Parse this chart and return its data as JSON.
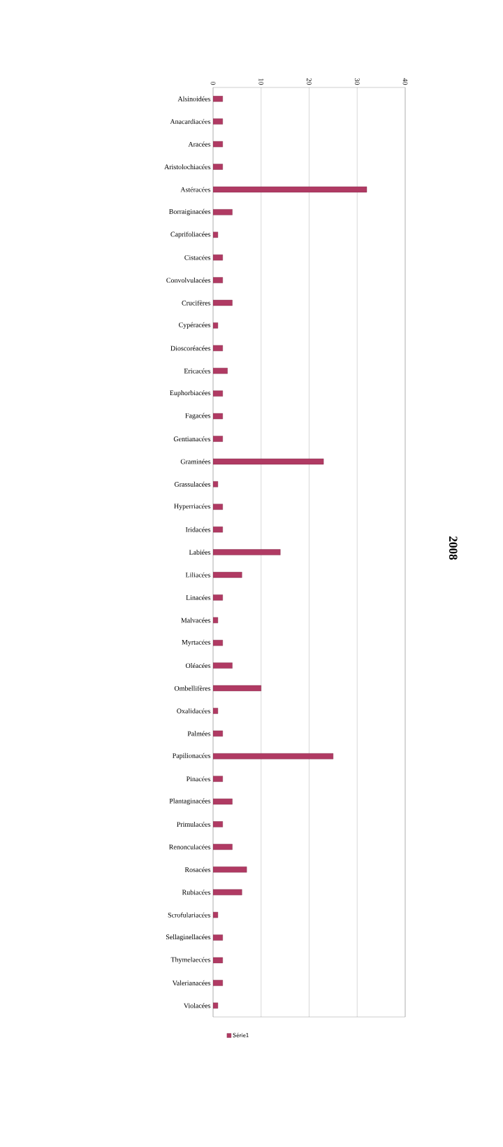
{
  "chart_data": {
    "type": "bar",
    "orientation": "horizontal",
    "title": "2008",
    "categories": [
      "Alsinoidées",
      "Anacardiacées",
      "Aracées",
      "Aristolochiacées",
      "Astéracées",
      "Borraiginacées",
      "Caprifoliacées",
      "Cistacées",
      "Convolvulacées",
      "Crucifères",
      "Cypéracées",
      "Dioscoréacées",
      "Ericacées",
      "Euphorbiacées",
      "Fagacées",
      "Gentianacées",
      "Graminées",
      "Grassulacées",
      "Hyperriacées",
      "Iridacées",
      "Labiées",
      "Liliacées",
      "Linacées",
      "Malvacées",
      "Myrtacées",
      "Oléacées",
      "Ombellifères",
      "Oxalidacées",
      "Palmées",
      "Papilionacées",
      "Pinacées",
      "Plantaginacées",
      "Primulacées",
      "Renonculacées",
      "Rosacées",
      "Rubiacées",
      "Scrofulariacées",
      "Sellaginellacées",
      "Thymelaecées",
      "Valerianacées",
      "Violacées"
    ],
    "series": [
      {
        "name": "Série1",
        "color": "#b03a63",
        "values": [
          2,
          2,
          2,
          2,
          32,
          4,
          1,
          2,
          2,
          4,
          1,
          2,
          3,
          2,
          2,
          2,
          23,
          1,
          2,
          2,
          14,
          6,
          2,
          1,
          2,
          4,
          10,
          1,
          2,
          25,
          2,
          4,
          2,
          4,
          7,
          6,
          1,
          2,
          2,
          2,
          1
        ]
      }
    ],
    "xlim": [
      0,
      40
    ],
    "xticks": [
      0,
      10,
      20,
      30,
      40
    ],
    "grid": "x",
    "legend": "bottom"
  }
}
